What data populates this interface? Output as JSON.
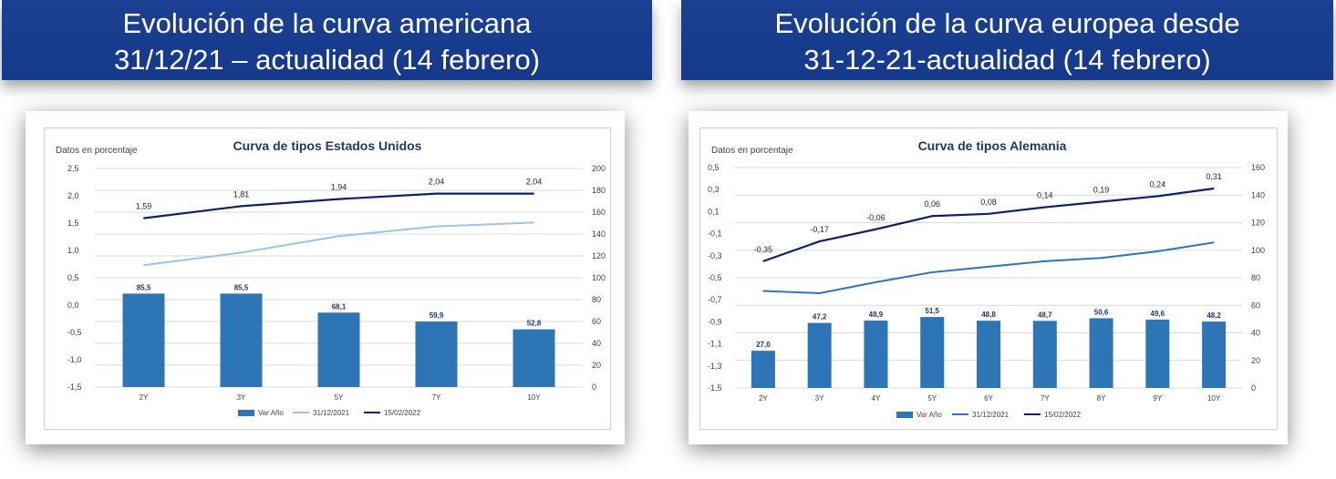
{
  "banners": {
    "left": {
      "line1": "Evolución de la curva americana",
      "line2": "31/12/21 – actualidad (14 febrero)"
    },
    "right": {
      "line1": "Evolución de la curva europea desde",
      "line2": "31-12-21-actualidad (14 febrero)"
    }
  },
  "colors": {
    "banner": "#1b3f92",
    "bars": "#2e75b6",
    "line_2021_us": "#9dc3e6",
    "line_2021_de": "#2e75b6",
    "line_2022": "#0d2260"
  },
  "chart_data": [
    {
      "type": "bar",
      "title": "Curva de tipos Estados Unidos",
      "note": "Datos en porcentaje",
      "categories": [
        "2Y",
        "3Y",
        "5Y",
        "7Y",
        "10Y"
      ],
      "ylim_left": [
        -1.5,
        2.5
      ],
      "yticks_left": [
        "2,5",
        "2,0",
        "1,5",
        "1,0",
        "0,5",
        "0,0",
        "-0,5",
        "-1,0",
        "-1,5"
      ],
      "ylim_right": [
        0,
        200
      ],
      "yticks_right": [
        "200",
        "180",
        "160",
        "140",
        "120",
        "100",
        "80",
        "60",
        "40",
        "20",
        "0"
      ],
      "series": [
        {
          "name": "Var Año",
          "kind": "bar",
          "axis": "right",
          "values": [
            85.5,
            85.5,
            68.1,
            59.9,
            52.8
          ],
          "labels": [
            "85,5",
            "85,5",
            "68,1",
            "59,9",
            "52,8"
          ]
        },
        {
          "name": "31/12/2021",
          "kind": "line",
          "axis": "left",
          "values": [
            0.73,
            0.96,
            1.26,
            1.44,
            1.51
          ],
          "labels": []
        },
        {
          "name": "15/02/2022",
          "kind": "line",
          "axis": "left",
          "values": [
            1.59,
            1.81,
            1.94,
            2.04,
            2.04
          ],
          "labels": [
            "1,59",
            "1,81",
            "1,94",
            "2,04",
            "2,04"
          ]
        }
      ]
    },
    {
      "type": "bar",
      "title": "Curva de tipos Alemania",
      "note": "Datos en porcentaje",
      "categories": [
        "2Y",
        "3Y",
        "4Y",
        "5Y",
        "6Y",
        "7Y",
        "8Y",
        "9Y",
        "10Y"
      ],
      "ylim_left": [
        -1.5,
        0.5
      ],
      "yticks_left": [
        "0,5",
        "0,3",
        "0,1",
        "-0,1",
        "-0,3",
        "-0,5",
        "-0,7",
        "-0,9",
        "-1,1",
        "-1,3",
        "-1,5"
      ],
      "ylim_right": [
        0,
        160
      ],
      "yticks_right": [
        "160",
        "140",
        "120",
        "100",
        "80",
        "60",
        "40",
        "20",
        "0"
      ],
      "series": [
        {
          "name": "Var Año",
          "kind": "bar",
          "axis": "right",
          "values": [
            27.0,
            47.2,
            48.9,
            51.5,
            48.8,
            48.7,
            50.6,
            49.6,
            48.2
          ],
          "labels": [
            "27,0",
            "47,2",
            "48,9",
            "51,5",
            "48,8",
            "48,7",
            "50,6",
            "49,6",
            "48,2"
          ]
        },
        {
          "name": "31/12/2021",
          "kind": "line",
          "axis": "left",
          "values": [
            -0.62,
            -0.64,
            -0.54,
            -0.45,
            -0.4,
            -0.35,
            -0.32,
            -0.26,
            -0.18
          ],
          "labels": []
        },
        {
          "name": "15/02/2022",
          "kind": "line",
          "axis": "left",
          "values": [
            -0.35,
            -0.17,
            -0.06,
            0.06,
            0.08,
            0.14,
            0.19,
            0.24,
            0.31
          ],
          "labels": [
            "-0,35",
            "-0,17",
            "-0,06",
            "0,06",
            "0,08",
            "0,14",
            "0,19",
            "0,24",
            "0,31"
          ]
        }
      ]
    }
  ]
}
